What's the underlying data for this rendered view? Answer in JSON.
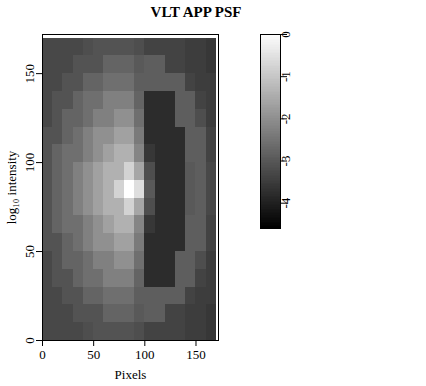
{
  "chart_data": {
    "type": "heatmap",
    "title": "VLT APP PSF",
    "x_label": "Pixels",
    "y_label": "log₁₀ intensity",
    "xlim": [
      0,
      172
    ],
    "ylim": [
      0,
      172
    ],
    "xticks": [
      0,
      50,
      100,
      150
    ],
    "yticks": [
      0,
      50,
      100,
      150
    ],
    "x_edges": [
      0,
      10,
      20,
      30,
      40,
      50,
      60,
      70,
      80,
      90,
      100,
      110,
      120,
      130,
      140,
      150,
      160,
      170
    ],
    "y_edges": [
      0,
      10,
      20,
      30,
      40,
      50,
      60,
      70,
      80,
      90,
      100,
      110,
      120,
      130,
      140,
      150,
      160,
      170
    ],
    "cells": [
      [
        -3.3,
        -3.3,
        -3.3,
        -3.3,
        -3.2,
        -3.1,
        -3.1,
        -3.1,
        -3.1,
        -3.2,
        -3.4,
        -3.4,
        -3.4,
        -3.4,
        -3.5,
        -3.5,
        -3.6
      ],
      [
        -3.3,
        -3.3,
        -3.3,
        -3.1,
        -3.1,
        -3.1,
        -2.8,
        -2.8,
        -2.8,
        -3.0,
        -2.9,
        -2.9,
        -3.4,
        -3.4,
        -3.5,
        -3.5,
        -3.6
      ],
      [
        -3.3,
        -3.3,
        -3.1,
        -3.1,
        -2.8,
        -2.8,
        -2.6,
        -2.6,
        -2.6,
        -2.9,
        -2.9,
        -2.9,
        -2.9,
        -2.9,
        -3.4,
        -3.5,
        -3.5
      ],
      [
        -3.3,
        -3.1,
        -3.1,
        -2.8,
        -2.6,
        -2.6,
        -2.3,
        -2.3,
        -2.3,
        -2.8,
        -3.8,
        -3.8,
        -3.8,
        -2.9,
        -2.9,
        -3.4,
        -3.5
      ],
      [
        -3.3,
        -3.1,
        -2.8,
        -2.8,
        -2.6,
        -2.3,
        -2.3,
        -2.0,
        -2.0,
        -2.6,
        -3.8,
        -3.8,
        -3.8,
        -2.9,
        -2.9,
        -3.2,
        -3.5
      ],
      [
        -3.1,
        -3.1,
        -2.8,
        -2.6,
        -2.3,
        -2.0,
        -2.0,
        -1.7,
        -1.7,
        -2.4,
        -3.8,
        -3.8,
        -3.8,
        -3.8,
        -2.9,
        -2.9,
        -3.4
      ],
      [
        -3.1,
        -2.8,
        -2.6,
        -2.6,
        -2.3,
        -2.0,
        -1.7,
        -1.4,
        -1.4,
        -2.2,
        -3.6,
        -3.8,
        -3.8,
        -3.8,
        -2.9,
        -2.9,
        -3.4
      ],
      [
        -3.1,
        -2.8,
        -2.6,
        -2.3,
        -2.0,
        -1.7,
        -1.4,
        -1.4,
        -0.8,
        -1.6,
        -3.2,
        -3.8,
        -3.8,
        -3.8,
        -3.0,
        -2.9,
        -3.3
      ],
      [
        -3.1,
        -2.8,
        -2.6,
        -2.3,
        -2.0,
        -1.7,
        -1.4,
        -0.8,
        0,
        -0.6,
        -3.0,
        -3.8,
        -3.8,
        -3.8,
        -3.0,
        -2.9,
        -3.3
      ],
      [
        -3.1,
        -2.8,
        -2.6,
        -2.3,
        -2.0,
        -1.7,
        -1.4,
        -1.4,
        -0.8,
        -1.6,
        -3.2,
        -3.8,
        -3.8,
        -3.8,
        -3.0,
        -2.9,
        -3.3
      ],
      [
        -3.1,
        -2.8,
        -2.6,
        -2.6,
        -2.3,
        -2.0,
        -1.7,
        -1.4,
        -1.4,
        -2.2,
        -3.6,
        -3.8,
        -3.8,
        -3.8,
        -2.9,
        -2.9,
        -3.4
      ],
      [
        -3.1,
        -3.1,
        -2.8,
        -2.6,
        -2.3,
        -2.0,
        -2.0,
        -1.7,
        -1.7,
        -2.4,
        -3.8,
        -3.8,
        -3.8,
        -3.8,
        -2.9,
        -2.9,
        -3.4
      ],
      [
        -3.3,
        -3.1,
        -2.8,
        -2.8,
        -2.6,
        -2.3,
        -2.3,
        -2.0,
        -2.0,
        -2.6,
        -3.8,
        -3.8,
        -3.8,
        -2.9,
        -2.9,
        -3.2,
        -3.5
      ],
      [
        -3.3,
        -3.1,
        -3.1,
        -2.8,
        -2.6,
        -2.6,
        -2.3,
        -2.3,
        -2.3,
        -2.8,
        -3.8,
        -3.8,
        -3.8,
        -2.9,
        -2.9,
        -3.4,
        -3.5
      ],
      [
        -3.3,
        -3.3,
        -3.1,
        -3.1,
        -2.8,
        -2.8,
        -2.6,
        -2.6,
        -2.6,
        -2.9,
        -2.9,
        -2.9,
        -2.9,
        -2.9,
        -3.4,
        -3.5,
        -3.5
      ],
      [
        -3.3,
        -3.3,
        -3.3,
        -3.1,
        -3.1,
        -3.1,
        -2.8,
        -2.8,
        -2.8,
        -3.0,
        -2.9,
        -2.9,
        -3.4,
        -3.4,
        -3.5,
        -3.5,
        -3.6
      ],
      [
        -3.3,
        -3.3,
        -3.3,
        -3.3,
        -3.2,
        -3.1,
        -3.1,
        -3.1,
        -3.1,
        -3.2,
        -3.4,
        -3.4,
        -3.4,
        -3.4,
        -3.5,
        -3.5,
        -3.6
      ]
    ],
    "colorbar_range": [
      -4.6,
      0
    ],
    "colorbar_ticks": [
      0,
      -1,
      -2,
      -3,
      -4
    ],
    "color": "gray"
  }
}
